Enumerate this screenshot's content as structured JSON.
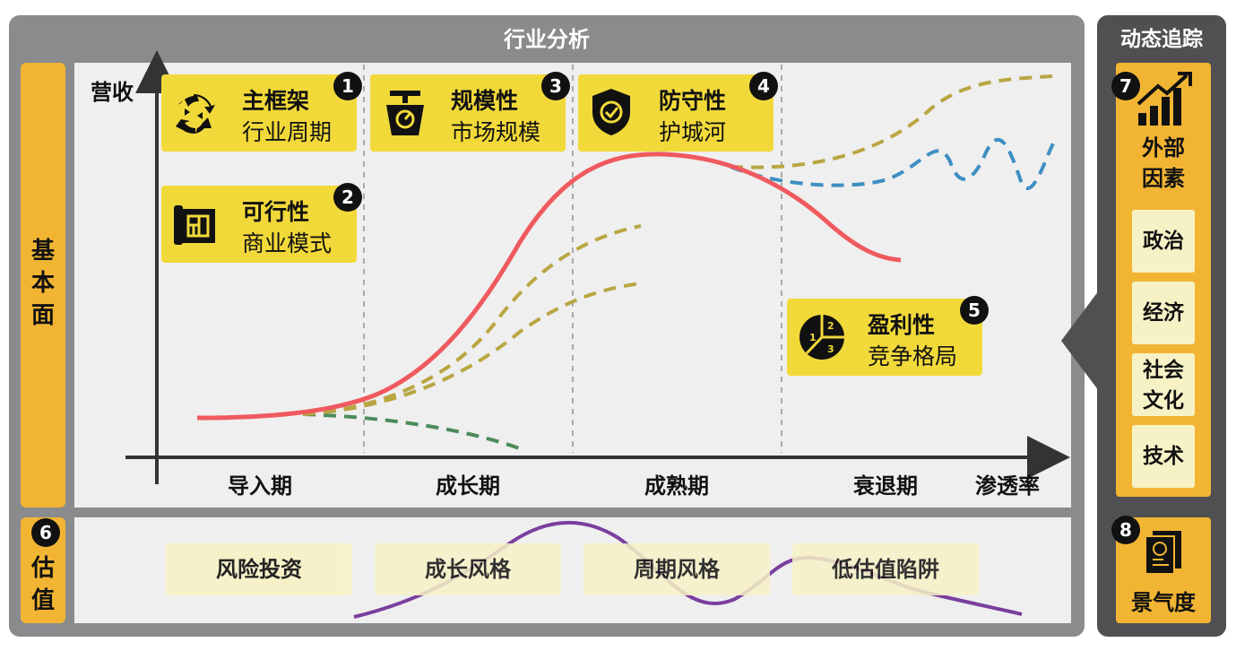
{
  "header": {
    "industry_analysis": "行业分析",
    "dynamic_tracking": "动态追踪"
  },
  "left": {
    "fundamentals": "基本面",
    "valuation": "估值",
    "valuation_badge": "6"
  },
  "axes": {
    "y_label": "营收",
    "x_label": "渗透率"
  },
  "stages": [
    "导入期",
    "成长期",
    "成熟期",
    "衰退期"
  ],
  "cards": [
    {
      "number": "1",
      "title": "主框架",
      "subtitle": "行业周期",
      "icon": "recycle-arrows-icon"
    },
    {
      "number": "2",
      "title": "可行性",
      "subtitle": "商业模式",
      "icon": "blueprint-icon"
    },
    {
      "number": "3",
      "title": "规模性",
      "subtitle": "市场规模",
      "icon": "scale-icon"
    },
    {
      "number": "4",
      "title": "防守性",
      "subtitle": "护城河",
      "icon": "shield-check-icon"
    },
    {
      "number": "5",
      "title": "盈利性",
      "subtitle": "竞争格局",
      "icon": "pie-ranking-icon"
    }
  ],
  "valuation_styles": [
    "风险投资",
    "成长风格",
    "周期风格",
    "低估值陷阱"
  ],
  "side": {
    "external_badge": "7",
    "external_title": "外部因素",
    "factors": [
      "政治",
      "经济",
      "社会文化",
      "技术"
    ],
    "prosperity_badge": "8",
    "prosperity_title": "景气度"
  },
  "colors": {
    "main_curve": "#ef5a5f",
    "gold_dashed": "#b9a642",
    "blue_dashed": "#3e8fc2",
    "green_dashed": "#4c8b5a",
    "valuation_curve": "#7a3f9e",
    "card": "#f2d93a",
    "orange": "#f2b533"
  }
}
